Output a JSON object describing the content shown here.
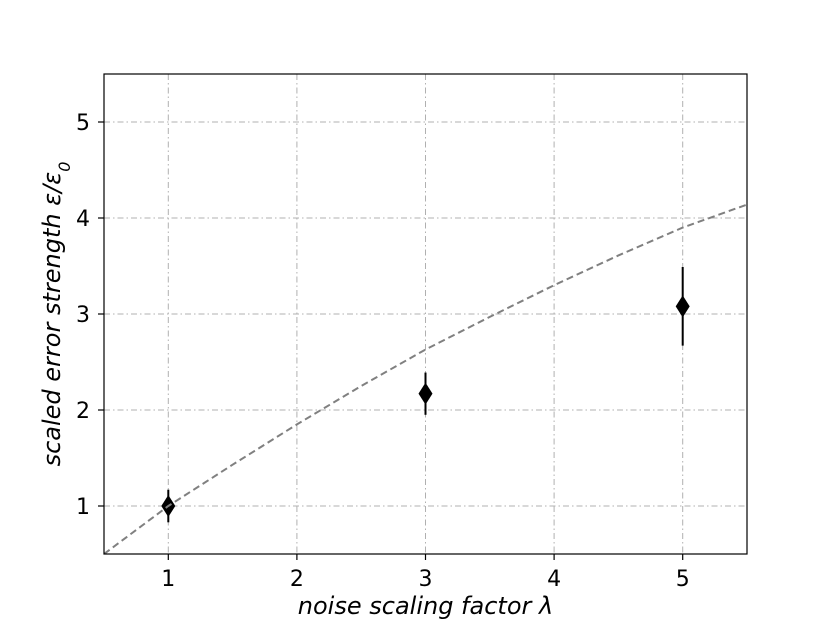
{
  "chart_data": {
    "type": "scatter",
    "title": "",
    "xlabel": "noise scaling factor λ",
    "ylabel": "scaled error strength ε/ε",
    "ylabel_subscript": "0",
    "xlim": [
      0.5,
      5.5
    ],
    "ylim": [
      0.5,
      5.5
    ],
    "x_ticks": [
      1,
      2,
      3,
      4,
      5
    ],
    "y_ticks": [
      1,
      2,
      3,
      4,
      5
    ],
    "x_tick_labels": [
      "1",
      "2",
      "3",
      "4",
      "5"
    ],
    "y_tick_labels": [
      "1",
      "2",
      "3",
      "4",
      "5"
    ],
    "grid": true,
    "grid_style": "dash-dot",
    "series": [
      {
        "type": "scatter",
        "marker": "diamond",
        "color": "#000000",
        "points": [
          {
            "x": 1,
            "y": 1.0,
            "err": 0.17
          },
          {
            "x": 3,
            "y": 2.17,
            "err": 0.22
          },
          {
            "x": 5,
            "y": 3.08,
            "err": 0.41
          }
        ]
      },
      {
        "type": "line",
        "style": "dashed",
        "color": "#808080",
        "x": [
          0.5,
          1,
          1.5,
          2,
          2.5,
          3,
          3.5,
          4,
          4.5,
          5,
          5.5
        ],
        "y": [
          0.5,
          1.0,
          1.43,
          1.85,
          2.25,
          2.63,
          2.97,
          3.3,
          3.61,
          3.9,
          4.14
        ]
      }
    ]
  }
}
